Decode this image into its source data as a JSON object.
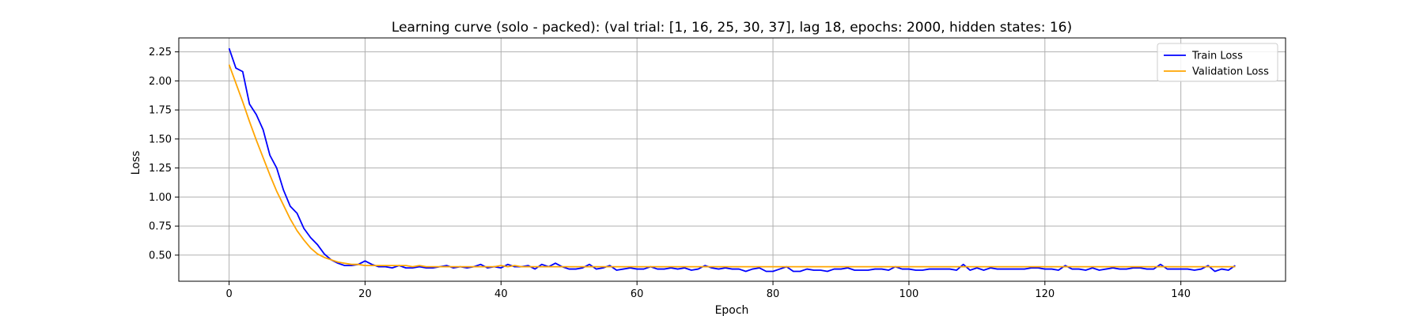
{
  "chart_data": {
    "type": "line",
    "title": "Learning curve (solo - packed): (val trial: [1, 16, 25, 30, 37], lag 18, epochs: 2000, hidden states: 16)",
    "xlabel": "Epoch",
    "ylabel": "Loss",
    "xlim": [
      -7.4,
      155.4
    ],
    "ylim": [
      0.275,
      2.37
    ],
    "xticks": [
      0,
      20,
      40,
      60,
      80,
      100,
      120,
      140
    ],
    "xtick_labels": [
      "0",
      "20",
      "40",
      "60",
      "80",
      "100",
      "120",
      "140"
    ],
    "yticks": [
      0.5,
      0.75,
      1.0,
      1.25,
      1.5,
      1.75,
      2.0,
      2.25
    ],
    "ytick_labels": [
      "0.50",
      "0.75",
      "1.00",
      "1.25",
      "1.50",
      "1.75",
      "2.00",
      "2.25"
    ],
    "grid": true,
    "legend_position": "top-right",
    "series": [
      {
        "name": "Train Loss",
        "color": "#0000ff",
        "x_start": 0,
        "x_step": 1,
        "values": [
          2.28,
          2.11,
          2.08,
          1.8,
          1.71,
          1.58,
          1.36,
          1.25,
          1.06,
          0.92,
          0.86,
          0.73,
          0.65,
          0.59,
          0.51,
          0.46,
          0.43,
          0.41,
          0.41,
          0.42,
          0.45,
          0.42,
          0.4,
          0.4,
          0.39,
          0.41,
          0.39,
          0.39,
          0.4,
          0.39,
          0.39,
          0.4,
          0.41,
          0.39,
          0.4,
          0.39,
          0.4,
          0.42,
          0.39,
          0.4,
          0.39,
          0.42,
          0.4,
          0.4,
          0.41,
          0.38,
          0.42,
          0.4,
          0.43,
          0.4,
          0.38,
          0.38,
          0.39,
          0.42,
          0.38,
          0.39,
          0.41,
          0.37,
          0.38,
          0.39,
          0.38,
          0.38,
          0.4,
          0.38,
          0.38,
          0.39,
          0.38,
          0.39,
          0.37,
          0.38,
          0.41,
          0.39,
          0.38,
          0.39,
          0.38,
          0.38,
          0.36,
          0.38,
          0.39,
          0.36,
          0.36,
          0.38,
          0.4,
          0.36,
          0.36,
          0.38,
          0.37,
          0.37,
          0.36,
          0.38,
          0.38,
          0.39,
          0.37,
          0.37,
          0.37,
          0.38,
          0.38,
          0.37,
          0.4,
          0.38,
          0.38,
          0.37,
          0.37,
          0.38,
          0.38,
          0.38,
          0.38,
          0.37,
          0.42,
          0.37,
          0.39,
          0.37,
          0.39,
          0.38,
          0.38,
          0.38,
          0.38,
          0.38,
          0.39,
          0.39,
          0.38,
          0.38,
          0.37,
          0.41,
          0.38,
          0.38,
          0.37,
          0.39,
          0.37,
          0.38,
          0.39,
          0.38,
          0.38,
          0.39,
          0.39,
          0.38,
          0.38,
          0.42,
          0.38,
          0.38,
          0.38,
          0.38,
          0.37,
          0.38,
          0.41,
          0.36,
          0.38,
          0.37,
          0.41
        ]
      },
      {
        "name": "Validation Loss",
        "color": "#ffa500",
        "x_start": 0,
        "x_step": 1,
        "values": [
          2.14,
          1.98,
          1.82,
          1.65,
          1.49,
          1.34,
          1.19,
          1.05,
          0.93,
          0.81,
          0.71,
          0.63,
          0.56,
          0.51,
          0.48,
          0.46,
          0.44,
          0.43,
          0.42,
          0.42,
          0.41,
          0.41,
          0.41,
          0.41,
          0.41,
          0.41,
          0.41,
          0.4,
          0.41,
          0.4,
          0.4,
          0.4,
          0.4,
          0.4,
          0.4,
          0.4,
          0.4,
          0.4,
          0.4,
          0.4,
          0.41,
          0.4,
          0.41,
          0.4,
          0.4,
          0.4,
          0.4,
          0.4,
          0.4,
          0.4,
          0.4,
          0.4,
          0.4,
          0.4,
          0.4,
          0.4,
          0.4,
          0.4,
          0.4,
          0.4,
          0.4,
          0.4,
          0.4,
          0.4,
          0.4,
          0.4,
          0.4,
          0.4,
          0.4,
          0.4,
          0.4,
          0.4,
          0.4,
          0.4,
          0.4,
          0.4,
          0.4,
          0.4,
          0.4,
          0.4,
          0.4,
          0.4,
          0.4,
          0.4,
          0.4,
          0.4,
          0.4,
          0.4,
          0.4,
          0.4,
          0.4,
          0.4,
          0.4,
          0.4,
          0.4,
          0.4,
          0.4,
          0.4,
          0.4,
          0.4,
          0.4,
          0.4,
          0.4,
          0.4,
          0.4,
          0.4,
          0.4,
          0.4,
          0.4,
          0.4,
          0.4,
          0.4,
          0.4,
          0.4,
          0.4,
          0.4,
          0.4,
          0.4,
          0.4,
          0.4,
          0.4,
          0.4,
          0.4,
          0.4,
          0.4,
          0.4,
          0.4,
          0.4,
          0.4,
          0.4,
          0.4,
          0.4,
          0.4,
          0.4,
          0.4,
          0.4,
          0.4,
          0.4,
          0.4,
          0.4,
          0.4,
          0.4,
          0.4,
          0.4,
          0.4,
          0.4,
          0.4,
          0.4,
          0.4
        ]
      }
    ]
  }
}
